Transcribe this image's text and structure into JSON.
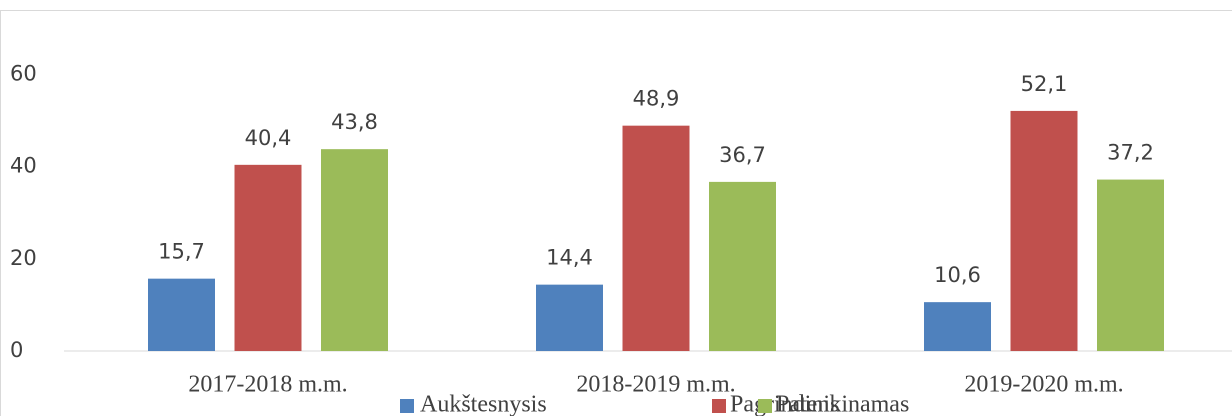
{
  "chart_data": {
    "type": "bar",
    "categories": [
      "2017-2018 m.m.",
      "2018-2019 m.m.",
      "2019-2020 m.m."
    ],
    "series": [
      {
        "name": "Aukštesnysis",
        "color": "#4f81bd",
        "values": [
          15.7,
          14.4,
          10.6
        ],
        "value_labels": [
          "15,7",
          "14,4",
          "10,6"
        ]
      },
      {
        "name": "Pagrindinis",
        "color": "#c0504d",
        "values": [
          40.4,
          48.9,
          52.1
        ],
        "value_labels": [
          "40,4",
          "48,9",
          "52,1"
        ]
      },
      {
        "name": "Patenkinamas",
        "color": "#9bbb59",
        "values": [
          43.8,
          36.7,
          37.2
        ],
        "value_labels": [
          "43,8",
          "36,7",
          "37,2"
        ]
      }
    ],
    "ylim": [
      0,
      74
    ],
    "yticks": [
      0,
      20,
      40,
      60
    ],
    "grid": false,
    "legend": "bottom"
  }
}
